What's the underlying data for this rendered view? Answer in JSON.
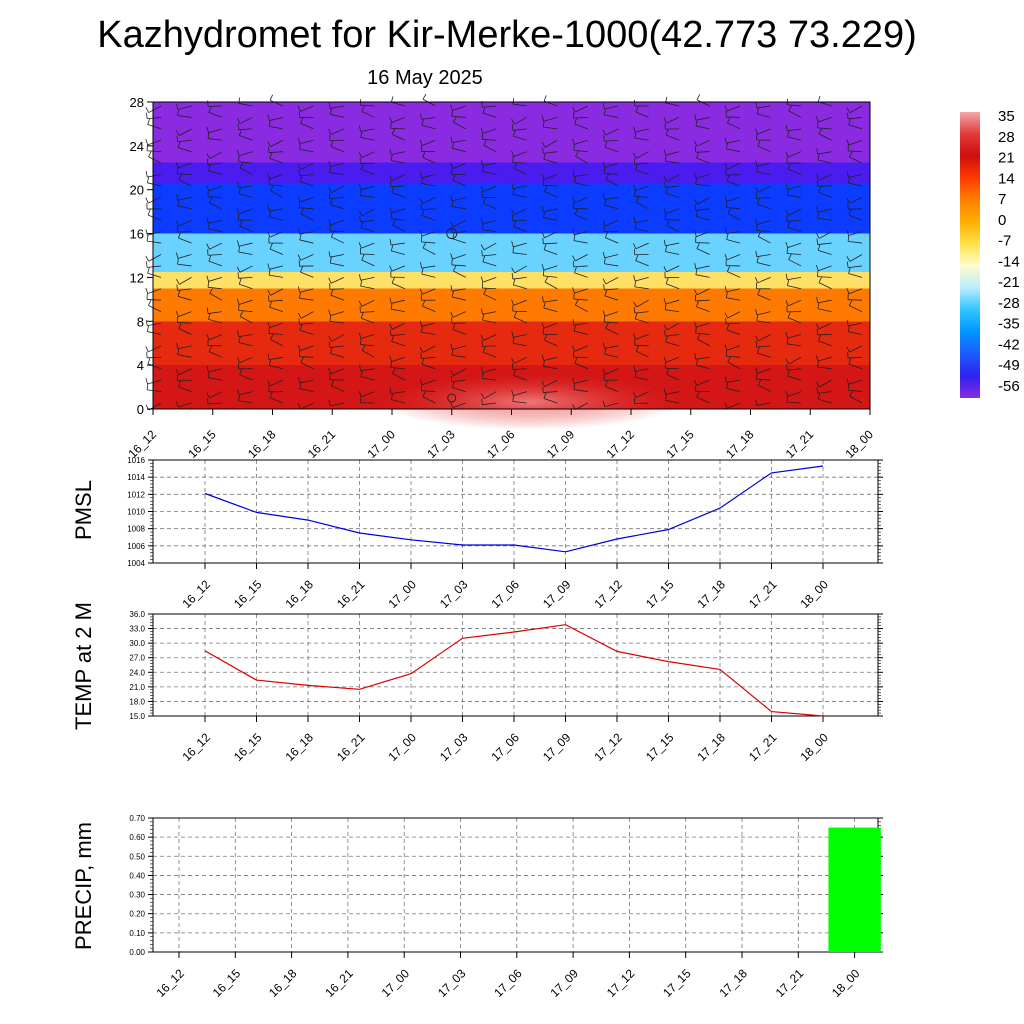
{
  "title": "Kazhydromet for Kir-Merke-1000(42.773 73.229)",
  "subtitle": "16 May 2025",
  "time_labels": [
    "16_12",
    "16_15",
    "16_18",
    "16_21",
    "17_00",
    "17_03",
    "17_06",
    "17_09",
    "17_12",
    "17_15",
    "17_18",
    "17_21",
    "18_00"
  ],
  "chart_data": [
    {
      "type": "heatmap",
      "x": [
        "16_12",
        "16_15",
        "16_18",
        "16_21",
        "17_00",
        "17_03",
        "17_06",
        "17_09",
        "17_12",
        "17_15",
        "17_18",
        "17_21",
        "18_00"
      ],
      "ylim": [
        0,
        28
      ],
      "yticks": [
        0,
        4,
        8,
        12,
        16,
        20,
        24,
        28
      ],
      "colorbar_labels": [
        "35",
        "28",
        "21",
        "14",
        "7",
        "0",
        "-7",
        "-14",
        "-21",
        "-28",
        "-35",
        "-42",
        "-49",
        "-56"
      ],
      "colorbar_colors": [
        "#f0a8a8",
        "#e03a3a",
        "#cf0e0e",
        "#ff3b00",
        "#ff7f00",
        "#ffb000",
        "#ffe34a",
        "#fffbd0",
        "#b8ecff",
        "#2ec6ff",
        "#0095ff",
        "#1e5bff",
        "#2d22ee",
        "#8a2be2"
      ],
      "colormap_bands": [
        {
          "y_from": 0,
          "y_to": 4,
          "color": "#d41616"
        },
        {
          "y_from": 4,
          "y_to": 8,
          "color": "#e62a10"
        },
        {
          "y_from": 8,
          "y_to": 11,
          "color": "#ff7a00"
        },
        {
          "y_from": 11,
          "y_to": 12.5,
          "color": "#ffe066"
        },
        {
          "y_from": 12.5,
          "y_to": 16,
          "color": "#69d2ff"
        },
        {
          "y_from": 16,
          "y_to": 20.5,
          "color": "#0c3cff"
        },
        {
          "y_from": 20.5,
          "y_to": 22.5,
          "color": "#4a1cef"
        },
        {
          "y_from": 22.5,
          "y_to": 28,
          "color": "#8a2be2"
        }
      ],
      "wind_barbs": true,
      "grid": false
    },
    {
      "type": "line",
      "ylabel": "PMSL",
      "x": [
        "16_12",
        "16_15",
        "16_18",
        "16_21",
        "17_00",
        "17_03",
        "17_06",
        "17_09",
        "17_12",
        "17_15",
        "17_18",
        "17_21",
        "18_00"
      ],
      "values": [
        1012.1,
        1009.9,
        1009.0,
        1007.5,
        1006.7,
        1006.1,
        1006.1,
        1005.3,
        1006.8,
        1007.9,
        1010.4,
        1014.5,
        1015.3
      ],
      "ylim": [
        1004,
        1016
      ],
      "yticks": [
        "1004",
        "1006",
        "1008",
        "1010",
        "1012",
        "1014",
        "1016"
      ],
      "color": "#0000dd",
      "grid": true
    },
    {
      "type": "line",
      "ylabel": "TEMP at 2 M",
      "x": [
        "16_12",
        "16_15",
        "16_18",
        "16_21",
        "17_00",
        "17_03",
        "17_06",
        "17_09",
        "17_12",
        "17_15",
        "17_18",
        "17_21",
        "18_00"
      ],
      "values": [
        28.4,
        22.4,
        21.3,
        20.5,
        23.7,
        31.0,
        32.3,
        33.8,
        28.3,
        26.2,
        24.6,
        15.9,
        15.0
      ],
      "ylim": [
        15,
        36
      ],
      "yticks": [
        "15.0",
        "18.0",
        "21.0",
        "24.0",
        "27.0",
        "30.0",
        "33.0",
        "36.0"
      ],
      "color": "#dd0000",
      "grid": true
    },
    {
      "type": "bar",
      "ylabel": "PRECIP, mm",
      "x": [
        "16_12",
        "16_15",
        "16_18",
        "16_21",
        "17_00",
        "17_03",
        "17_06",
        "17_09",
        "17_12",
        "17_15",
        "17_18",
        "17_21",
        "18_00"
      ],
      "values": [
        0,
        0,
        0,
        0,
        0,
        0,
        0,
        0,
        0,
        0,
        0,
        0,
        0.65
      ],
      "ylim": [
        0,
        0.7
      ],
      "yticks": [
        "0.00",
        "0.10",
        "0.20",
        "0.30",
        "0.40",
        "0.50",
        "0.60",
        "0.70"
      ],
      "color": "#00ff00",
      "grid": true
    }
  ]
}
